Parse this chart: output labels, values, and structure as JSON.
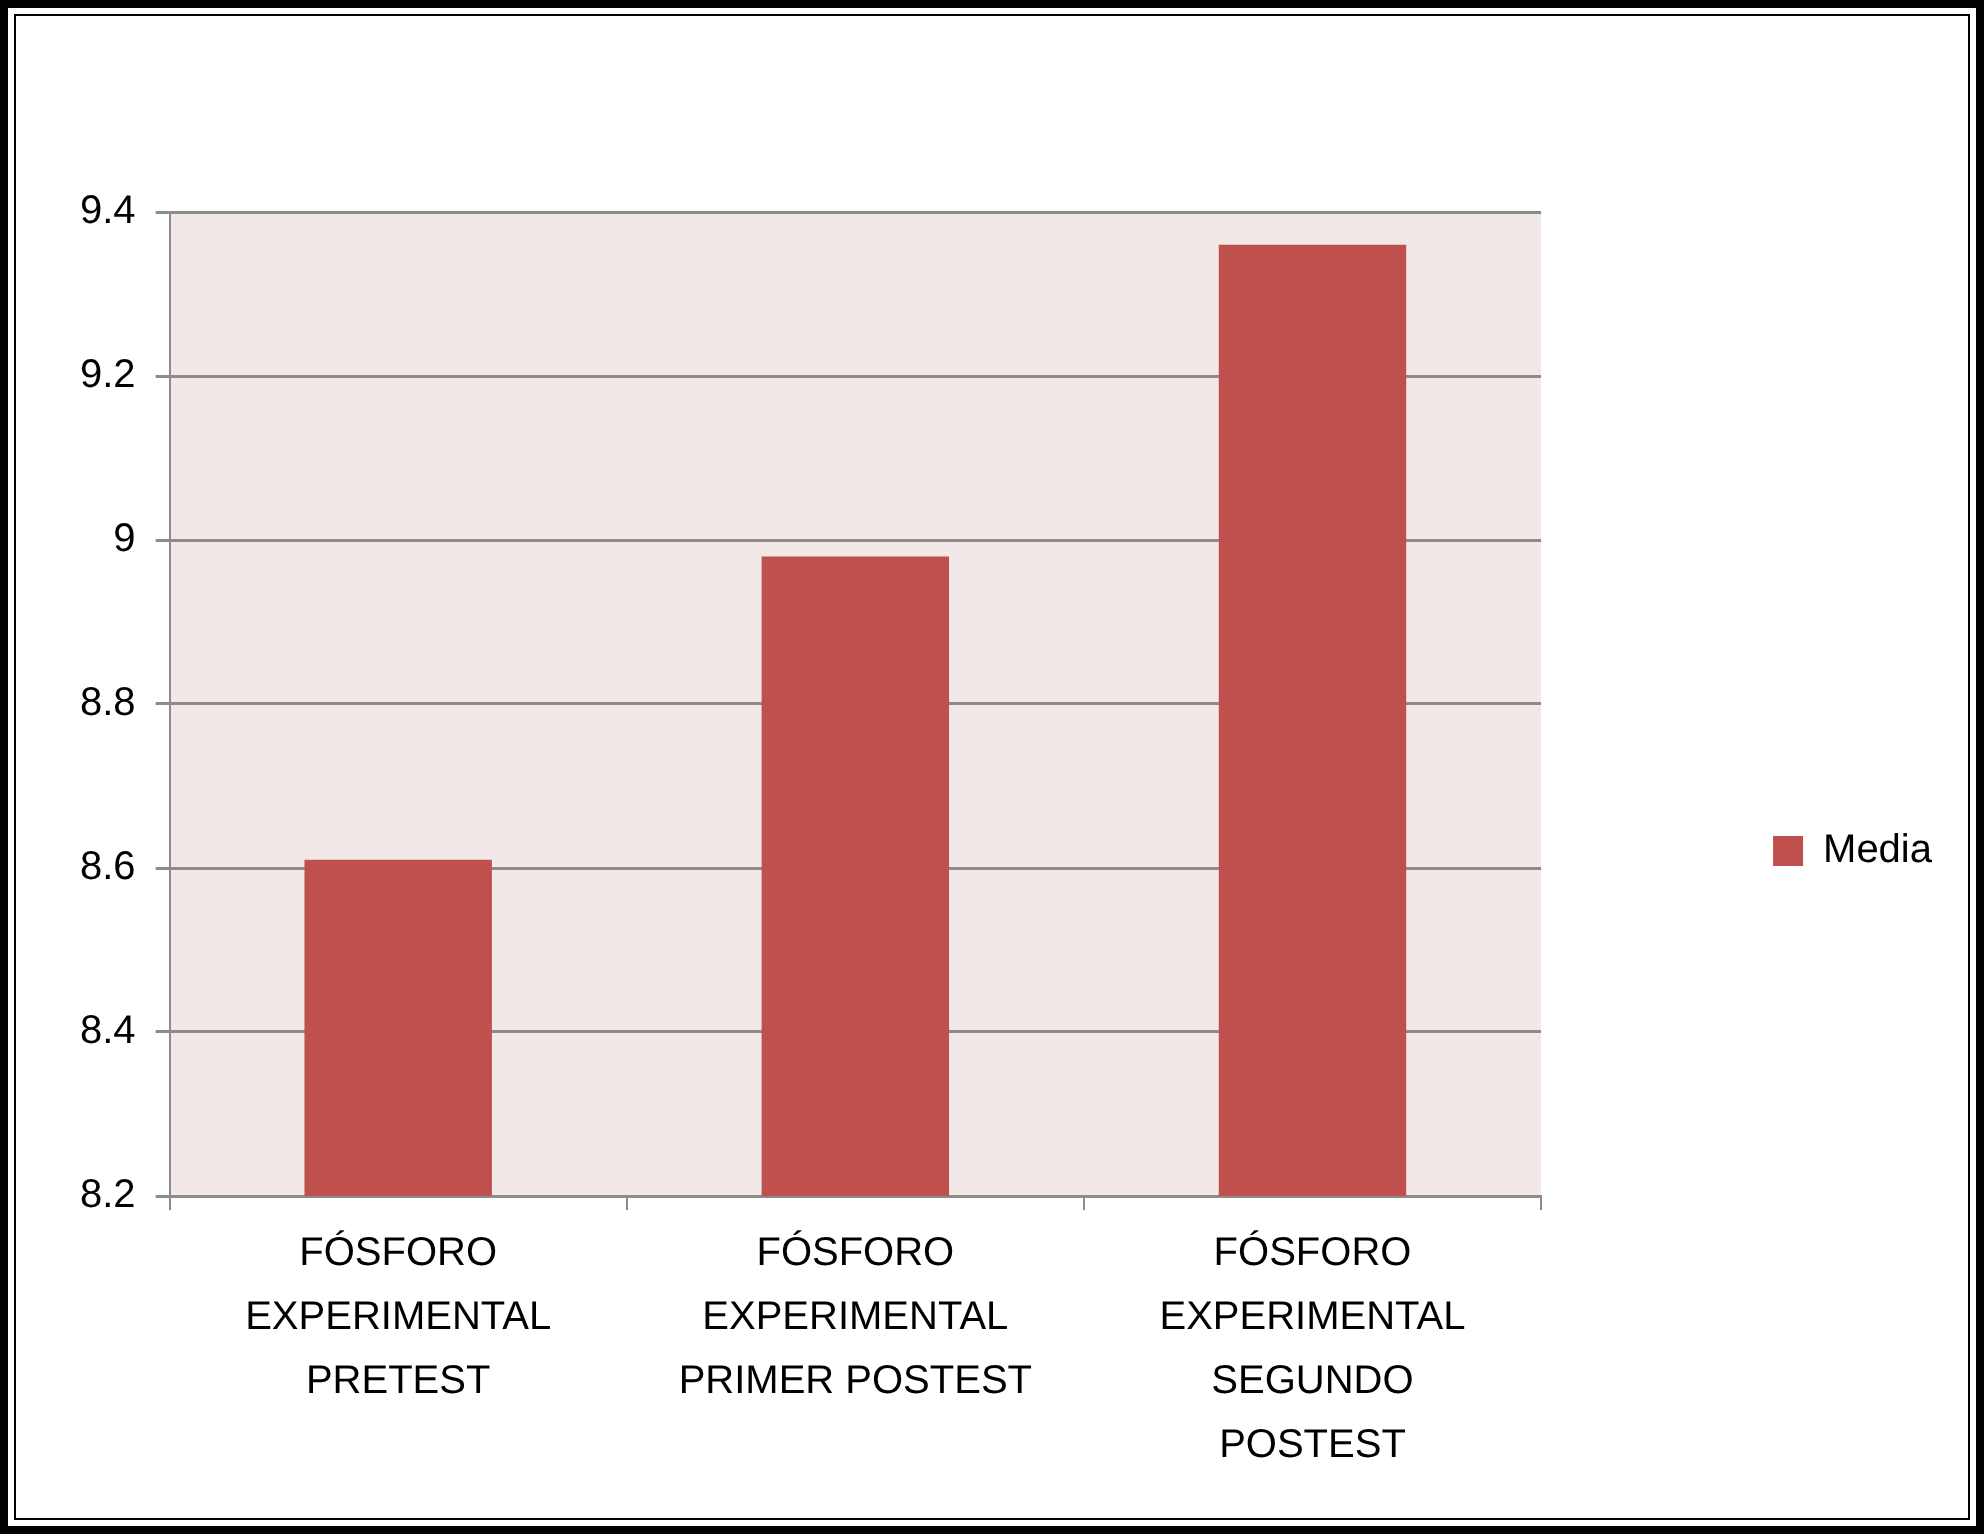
{
  "chart_data": {
    "type": "bar",
    "categories": [
      "FÓSFORO EXPERIMENTAL PRETEST",
      "FÓSFORO EXPERIMENTAL PRIMER POSTEST",
      "FÓSFORO EXPERIMENTAL SEGUNDO POSTEST"
    ],
    "series": [
      {
        "name": "Media",
        "color": "#c0504d",
        "values": [
          8.61,
          8.98,
          9.36
        ]
      }
    ],
    "ylim": [
      8.2,
      9.4
    ],
    "yticks": [
      8.2,
      8.4,
      8.6,
      8.8,
      9,
      9.2,
      9.4
    ],
    "grid": "y",
    "legend": "right"
  }
}
